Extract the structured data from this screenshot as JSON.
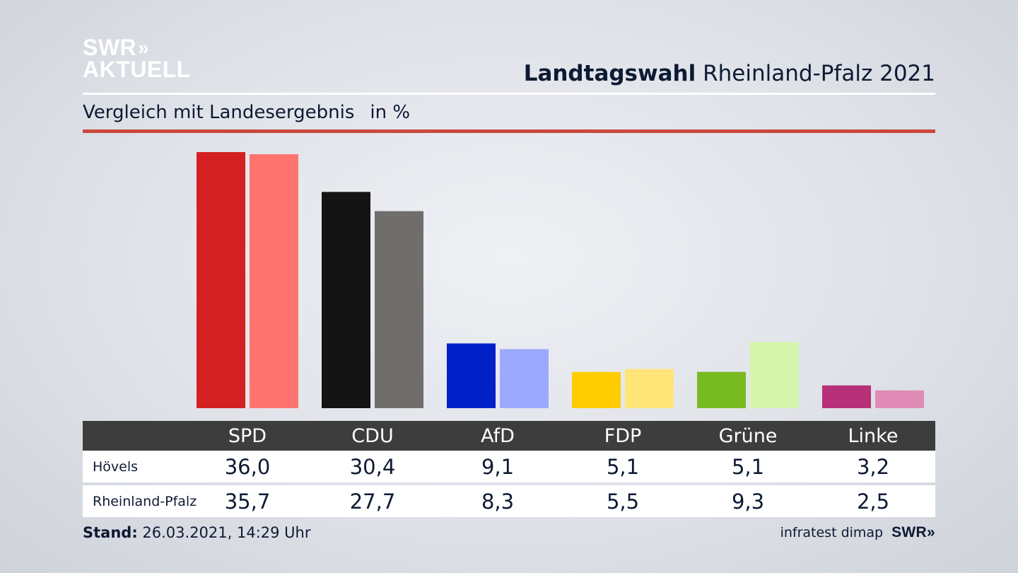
{
  "logo": {
    "line1": "SWR",
    "line1_chevrons": "»",
    "line2": "AKTUELL"
  },
  "header": {
    "title_bold": "Landtagswahl",
    "title_rest": " Rheinland-Pfalz 2021"
  },
  "subtitle": {
    "text": "Vergleich mit Landesergebnis",
    "unit": "in %"
  },
  "table": {
    "parties": [
      "SPD",
      "CDU",
      "AfD",
      "FDP",
      "Grüne",
      "Linke"
    ],
    "rows": [
      {
        "label": "Hövels",
        "values": [
          "36,0",
          "30,4",
          "9,1",
          "5,1",
          "5,1",
          "3,2"
        ]
      },
      {
        "label": "Rheinland-Pfalz",
        "values": [
          "35,7",
          "27,7",
          "8,3",
          "5,5",
          "9,3",
          "2,5"
        ]
      }
    ]
  },
  "footer": {
    "stand_label": "Stand:",
    "stand_value": " 26.03.2021, 14:29 Uhr",
    "source": "infratest dimap",
    "brand": "SWR»"
  },
  "chart_data": {
    "type": "bar",
    "categories": [
      "SPD",
      "CDU",
      "AfD",
      "FDP",
      "Grüne",
      "Linke"
    ],
    "series": [
      {
        "name": "Hövels",
        "values": [
          36.0,
          30.4,
          9.1,
          5.1,
          5.1,
          3.2
        ],
        "colors": [
          "#d42020",
          "#141414",
          "#0020c8",
          "#ffcc00",
          "#78bb20",
          "#b83078"
        ]
      },
      {
        "name": "Rheinland-Pfalz",
        "values": [
          35.7,
          27.7,
          8.3,
          5.5,
          9.3,
          2.5
        ],
        "colors": [
          "#ff7470",
          "#6f6e6c",
          "#9ca9ff",
          "#ffe478",
          "#d6f5ac",
          "#e08cb6"
        ]
      }
    ],
    "ylim": [
      0,
      36
    ]
  }
}
